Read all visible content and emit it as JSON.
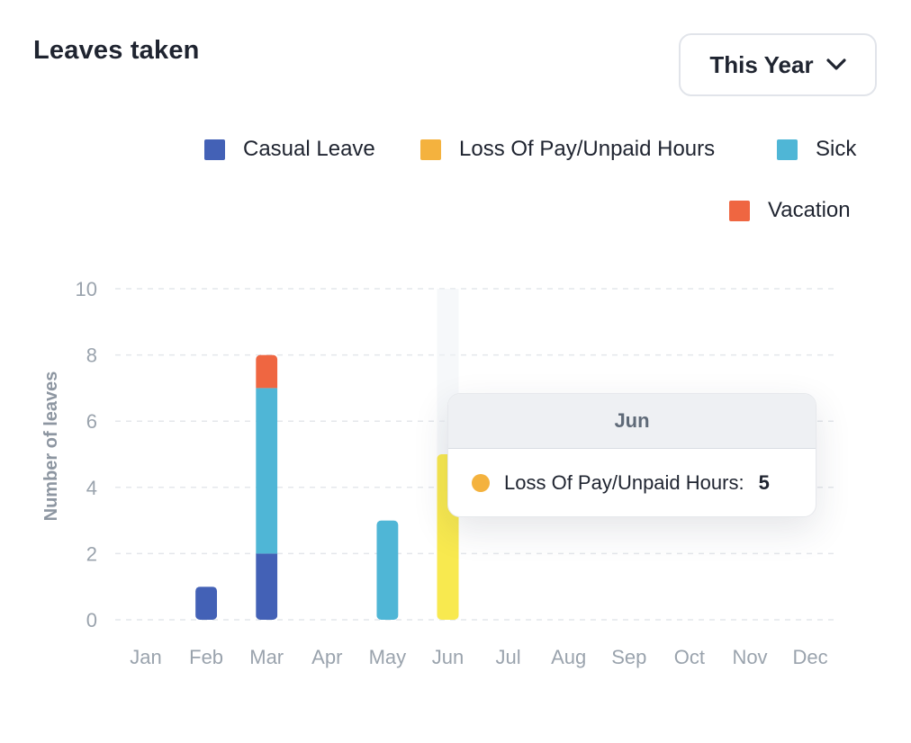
{
  "header": {
    "title": "Leaves taken"
  },
  "period_select": {
    "label": "This Year",
    "icon": "chevron-down-icon"
  },
  "legend": [
    {
      "label": "Casual Leave",
      "color": "#4361b6"
    },
    {
      "label": "Loss Of Pay/Unpaid Hours",
      "color": "#f4b23e"
    },
    {
      "label": "Sick",
      "color": "#4fb6d6"
    },
    {
      "label": "Vacation",
      "color": "#ef6641"
    }
  ],
  "tooltip": {
    "title": "Jun",
    "series": "Loss Of Pay/Unpaid Hours:",
    "value": "5",
    "color": "#f4b23e"
  },
  "chart_data": {
    "type": "bar",
    "stacked": true,
    "categories": [
      "Jan",
      "Feb",
      "Mar",
      "Apr",
      "May",
      "Jun",
      "Jul",
      "Aug",
      "Sep",
      "Oct",
      "Nov",
      "Dec"
    ],
    "series": [
      {
        "name": "Casual Leave",
        "color": "#4361b6",
        "values": [
          0,
          1,
          2,
          0,
          0,
          0,
          0,
          0,
          0,
          0,
          0,
          0
        ]
      },
      {
        "name": "Loss Of Pay/Unpaid Hours",
        "color": "#f4b23e",
        "values": [
          0,
          0,
          0,
          0,
          0,
          5,
          0,
          0,
          0,
          0,
          0,
          0
        ]
      },
      {
        "name": "Sick",
        "color": "#4fb6d6",
        "values": [
          0,
          0,
          5,
          0,
          3,
          0,
          0,
          0,
          0,
          0,
          0,
          0
        ]
      },
      {
        "name": "Vacation",
        "color": "#ef6641",
        "values": [
          0,
          0,
          1,
          0,
          0,
          0,
          0,
          0,
          0,
          0,
          0,
          0
        ]
      }
    ],
    "ylabel": "Number of leaves",
    "ylim": [
      0,
      10
    ],
    "yticks": [
      0,
      2,
      4,
      6,
      8,
      10
    ],
    "grid": true,
    "legend_position": "top-right",
    "highlighted_category": "Jun",
    "highlight_color": "#f8e94f"
  }
}
